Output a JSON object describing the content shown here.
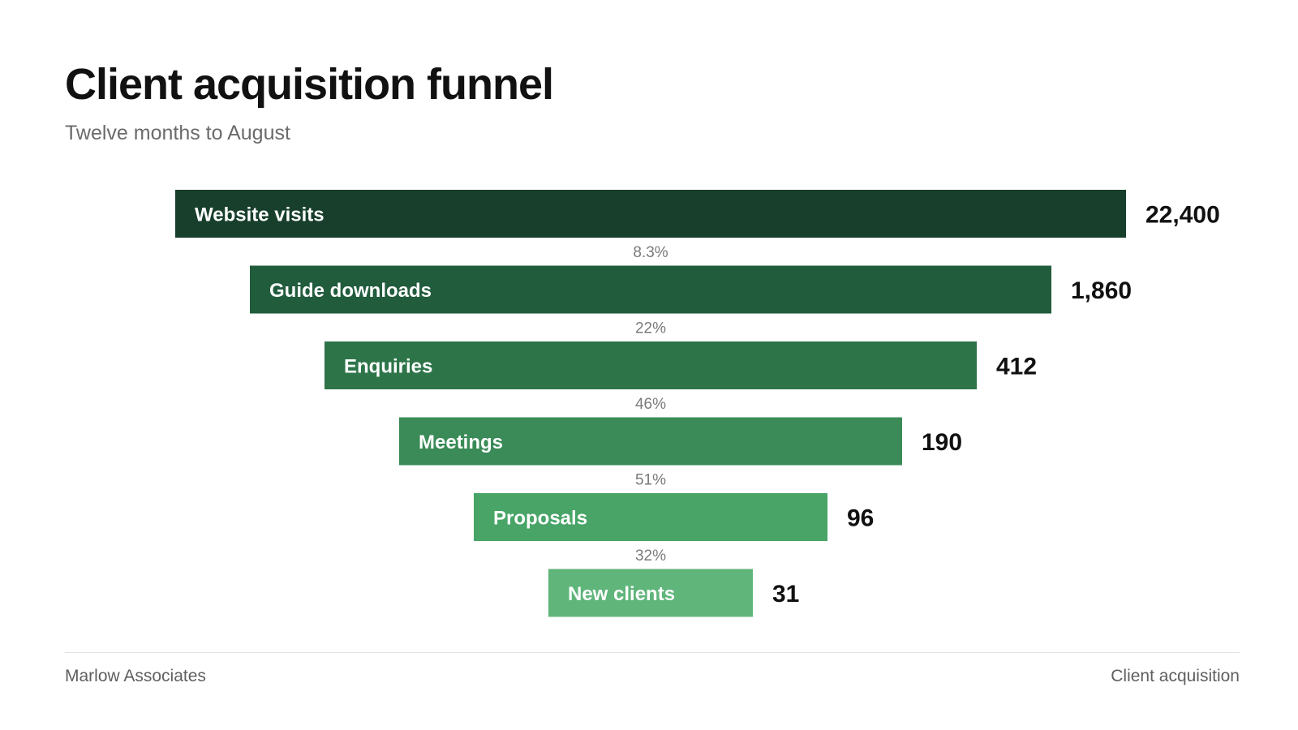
{
  "header": {
    "title": "Client acquisition funnel",
    "subtitle": "Twelve months to August"
  },
  "chart_data": {
    "type": "bar",
    "variant": "funnel",
    "title": "Client acquisition funnel",
    "subtitle": "Twelve months to August",
    "categories": [
      "Website visits",
      "Guide downloads",
      "Enquiries",
      "Meetings",
      "Proposals",
      "New clients"
    ],
    "values": [
      22400,
      1860,
      412,
      190,
      96,
      31
    ],
    "value_labels": [
      "22,400",
      "1,860",
      "412",
      "190",
      "96",
      "31"
    ],
    "conversion_rates": [
      "8.3%",
      "22%",
      "46%",
      "51%",
      "32%"
    ],
    "colors": [
      "#173f2b",
      "#215c3d",
      "#2d7549",
      "#3a8b57",
      "#48a467",
      "#5fb57a"
    ],
    "grid": false,
    "legend": "none"
  },
  "footer": {
    "left": "Marlow Associates",
    "right": "Client acquisition"
  }
}
